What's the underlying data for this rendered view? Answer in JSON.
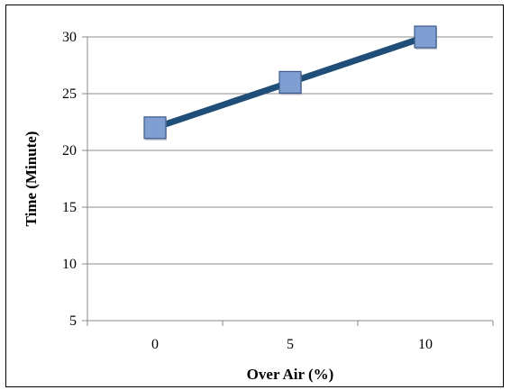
{
  "chart_data": {
    "type": "line",
    "title": "",
    "xlabel": "Over Air (%)",
    "ylabel": "Time (Minute)",
    "categories": [
      "0",
      "5",
      "10"
    ],
    "series": [
      {
        "values": [
          22,
          26,
          30
        ]
      }
    ],
    "ylim": [
      5,
      30
    ],
    "yticks": [
      "5",
      "10",
      "15",
      "20",
      "25",
      "30"
    ],
    "grid": true,
    "legend": "none",
    "line_color": "#1f4e79",
    "marker_color": "#7f9fd3",
    "marker_shape": "square"
  }
}
